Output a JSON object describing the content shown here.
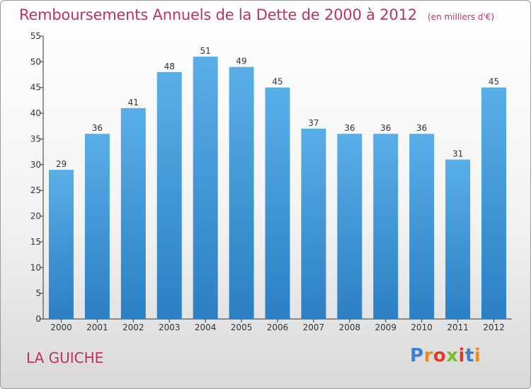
{
  "chart_data": {
    "type": "bar",
    "title": "Remboursements Annuels de la Dette de 2000 à 2012",
    "subtitle": "(en milliers d'€)",
    "categories": [
      "2000",
      "2001",
      "2002",
      "2003",
      "2004",
      "2005",
      "2006",
      "2007",
      "2008",
      "2009",
      "2010",
      "2011",
      "2012"
    ],
    "values": [
      29,
      36,
      41,
      48,
      51,
      49,
      45,
      37,
      36,
      36,
      36,
      31,
      45
    ],
    "ylim": [
      0,
      55
    ],
    "yticks": [
      0,
      5,
      10,
      15,
      20,
      25,
      30,
      35,
      40,
      45,
      50,
      55
    ],
    "grid": false,
    "bar_color_top": "#5aaee8",
    "bar_color_bottom": "#2c7fc2"
  },
  "commune": "LA GUICHE",
  "logo": {
    "text": "Proxiti",
    "letter_colors": [
      "#3a7fd0",
      "#f08a1c",
      "#e0382a",
      "#7cbb2a",
      "#e0382a",
      "#3a7fd0",
      "#f08a1c"
    ]
  },
  "colors": {
    "title": "#c0315e",
    "axis": "#333333"
  }
}
